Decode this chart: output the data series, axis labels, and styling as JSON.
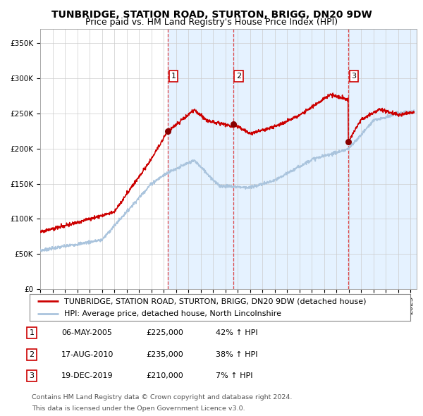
{
  "title": "TUNBRIDGE, STATION ROAD, STURTON, BRIGG, DN20 9DW",
  "subtitle": "Price paid vs. HM Land Registry's House Price Index (HPI)",
  "ylim": [
    0,
    370000
  ],
  "yticks": [
    0,
    50000,
    100000,
    150000,
    200000,
    250000,
    300000,
    350000
  ],
  "ytick_labels": [
    "£0",
    "£50K",
    "£100K",
    "£150K",
    "£200K",
    "£250K",
    "£300K",
    "£350K"
  ],
  "xlim_start": 1995.0,
  "xlim_end": 2025.5,
  "background_color": "#ffffff",
  "plot_bg_color": "#ffffff",
  "grid_color": "#cccccc",
  "sale_line_color": "#cc0000",
  "hpi_line_color": "#aac4dd",
  "sale_dot_color": "#880000",
  "vline_color": "#dd4444",
  "shade_color": "#ddeeff",
  "sales": [
    {
      "num": 1,
      "date_str": "06-MAY-2005",
      "date_x": 2005.35,
      "price": 225000,
      "pct": "42%",
      "dir": "↑"
    },
    {
      "num": 2,
      "date_str": "17-AUG-2010",
      "date_x": 2010.63,
      "price": 235000,
      "pct": "38%",
      "dir": "↑"
    },
    {
      "num": 3,
      "date_str": "19-DEC-2019",
      "date_x": 2019.96,
      "price": 210000,
      "pct": "7%",
      "dir": "↑"
    }
  ],
  "legend_line1": "TUNBRIDGE, STATION ROAD, STURTON, BRIGG, DN20 9DW (detached house)",
  "legend_line2": "HPI: Average price, detached house, North Lincolnshire",
  "footer1": "Contains HM Land Registry data © Crown copyright and database right 2024.",
  "footer2": "This data is licensed under the Open Government Licence v3.0.",
  "title_fontsize": 10,
  "subtitle_fontsize": 9,
  "tick_fontsize": 7.5,
  "legend_fontsize": 8,
  "table_fontsize": 8,
  "footer_fontsize": 6.8
}
